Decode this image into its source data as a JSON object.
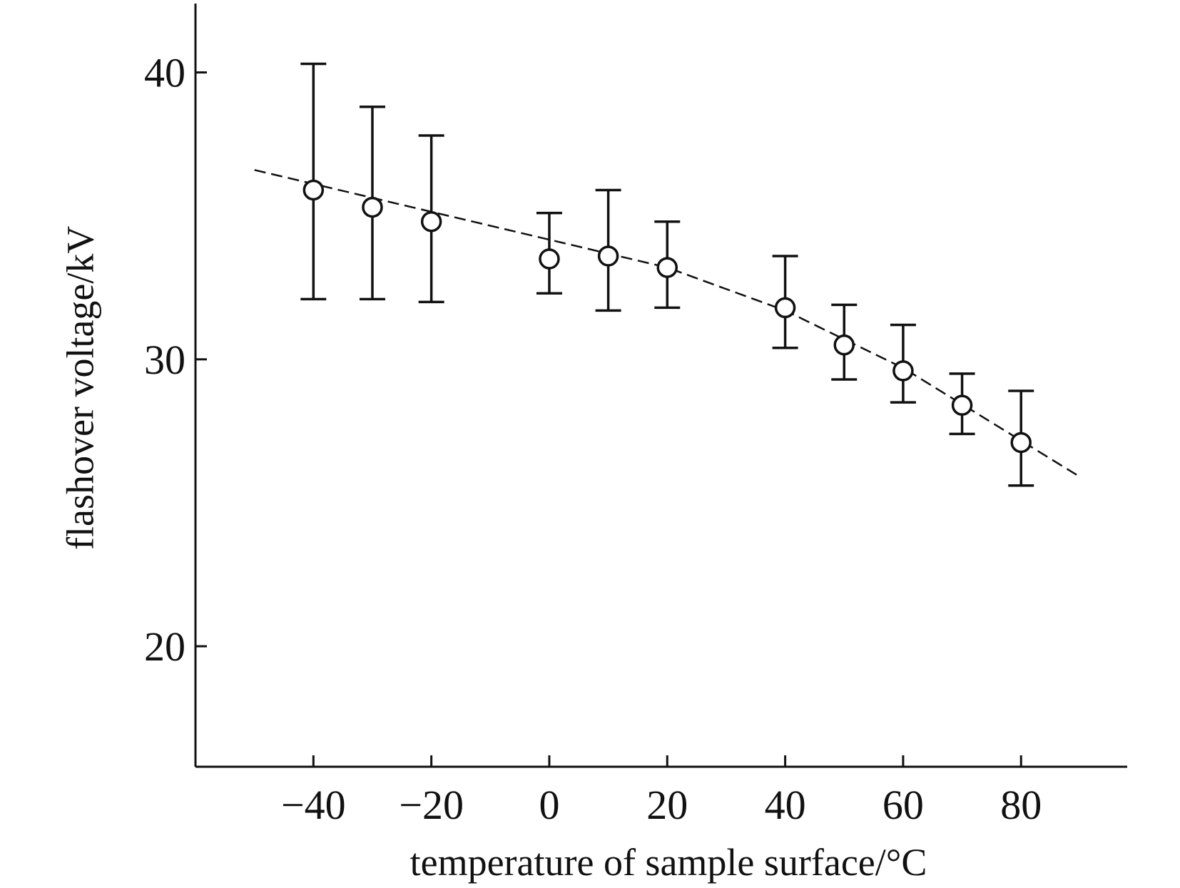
{
  "chart_data": {
    "type": "scatter",
    "title": "",
    "xlabel": "temperature of sample surface/°C",
    "ylabel": "flashover voltage/kV",
    "xlim": [
      -60,
      98
    ],
    "ylim": [
      15.8,
      42.4
    ],
    "x_ticks": [
      -40,
      -20,
      0,
      20,
      40,
      60,
      80
    ],
    "x_tick_labels": [
      "−40",
      "−20",
      "0",
      "20",
      "40",
      "60",
      "80"
    ],
    "y_ticks": [
      20,
      30,
      40
    ],
    "y_tick_labels": [
      "20",
      "30",
      "40"
    ],
    "grid": false,
    "legend": "none",
    "series": [
      {
        "marker": "open-circle",
        "error_bars": true,
        "points": [
          {
            "x": -40,
            "y": 35.9,
            "ylow": 32.1,
            "yhigh": 40.3
          },
          {
            "x": -30,
            "y": 35.3,
            "ylow": 32.1,
            "yhigh": 38.8
          },
          {
            "x": -20,
            "y": 34.8,
            "ylow": 32.0,
            "yhigh": 37.8
          },
          {
            "x": 0,
            "y": 33.5,
            "ylow": 32.3,
            "yhigh": 35.1
          },
          {
            "x": 10,
            "y": 33.6,
            "ylow": 31.7,
            "yhigh": 35.9
          },
          {
            "x": 20,
            "y": 33.2,
            "ylow": 31.8,
            "yhigh": 34.8
          },
          {
            "x": 40,
            "y": 31.8,
            "ylow": 30.4,
            "yhigh": 33.6
          },
          {
            "x": 50,
            "y": 30.5,
            "ylow": 29.3,
            "yhigh": 31.9
          },
          {
            "x": 60,
            "y": 29.6,
            "ylow": 28.5,
            "yhigh": 31.2
          },
          {
            "x": 70,
            "y": 28.4,
            "ylow": 27.4,
            "yhigh": 29.5
          },
          {
            "x": 80,
            "y": 27.1,
            "ylow": 25.6,
            "yhigh": 28.9
          }
        ]
      }
    ],
    "trend_line": {
      "style": "dashed",
      "points": [
        {
          "x": -50,
          "y": 36.6
        },
        {
          "x": 20,
          "y": 33.2
        },
        {
          "x": 40,
          "y": 31.7
        },
        {
          "x": 60,
          "y": 29.7
        },
        {
          "x": 90,
          "y": 25.9
        }
      ]
    },
    "colors": {
      "marks": "#111111",
      "background": "#ffffff"
    }
  }
}
